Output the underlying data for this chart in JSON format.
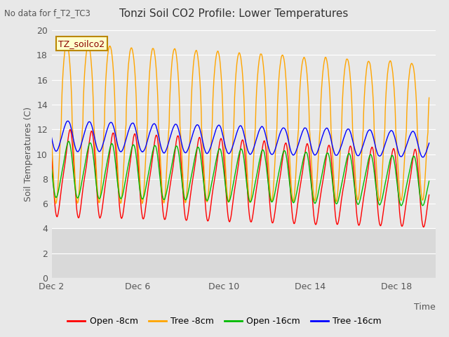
{
  "title": "Tonzi Soil CO2 Profile: Lower Temperatures",
  "subtitle": "No data for f_T2_TC3",
  "ylabel": "Soil Temperatures (C)",
  "xlabel": "Time",
  "ylim": [
    0,
    20
  ],
  "xlim": [
    2,
    19.8
  ],
  "bg_color": "#e8e8e8",
  "colors": {
    "open_8cm": "#ff0000",
    "tree_8cm": "#ffa500",
    "open_16cm": "#00bb00",
    "tree_16cm": "#0000ff"
  },
  "legend_labels": [
    "Open -8cm",
    "Tree -8cm",
    "Open -16cm",
    "Tree -16cm"
  ],
  "watermark": "TZ_soilco2",
  "xtick_labels": [
    "Dec 2",
    "Dec 6",
    "Dec 10",
    "Dec 14",
    "Dec 18"
  ],
  "xtick_positions": [
    2,
    6,
    10,
    14,
    18
  ],
  "ytick_positions": [
    0,
    2,
    4,
    6,
    8,
    10,
    12,
    14,
    16,
    18,
    20
  ]
}
